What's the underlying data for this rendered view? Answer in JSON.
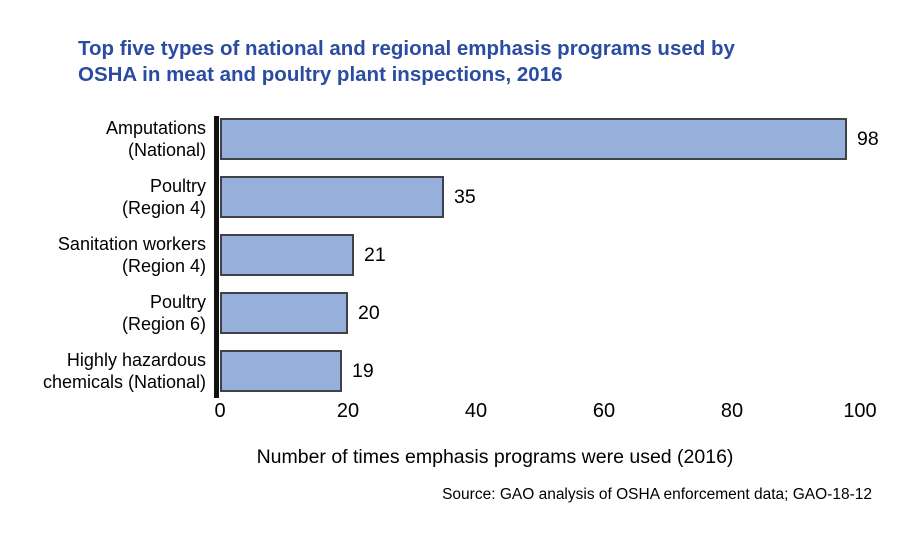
{
  "chart_data": {
    "type": "bar",
    "orientation": "horizontal",
    "title": "Top five types of national and regional emphasis programs used by\nOSHA in meat and poultry plant inspections, 2016",
    "title_color": "#2b4da1",
    "categories": [
      "Amputations\n(National)",
      "Poultry\n(Region 4)",
      "Sanitation workers\n(Region 4)",
      "Poultry\n(Region 6)",
      "Highly hazardous\nchemicals (National)"
    ],
    "values": [
      98,
      35,
      21,
      20,
      19
    ],
    "x_ticks": [
      0,
      20,
      40,
      60,
      80,
      100
    ],
    "xlim": [
      0,
      100
    ],
    "xlabel": "Number of times emphasis programs were used (2016)",
    "source_note": "Source: GAO analysis of OSHA enforcement data; GAO-18-12",
    "bar_fill_color": "#97b0db",
    "bar_border_color": "#41414a",
    "axis_line_color": "#111111",
    "grid": "off",
    "legend_position": "none"
  }
}
